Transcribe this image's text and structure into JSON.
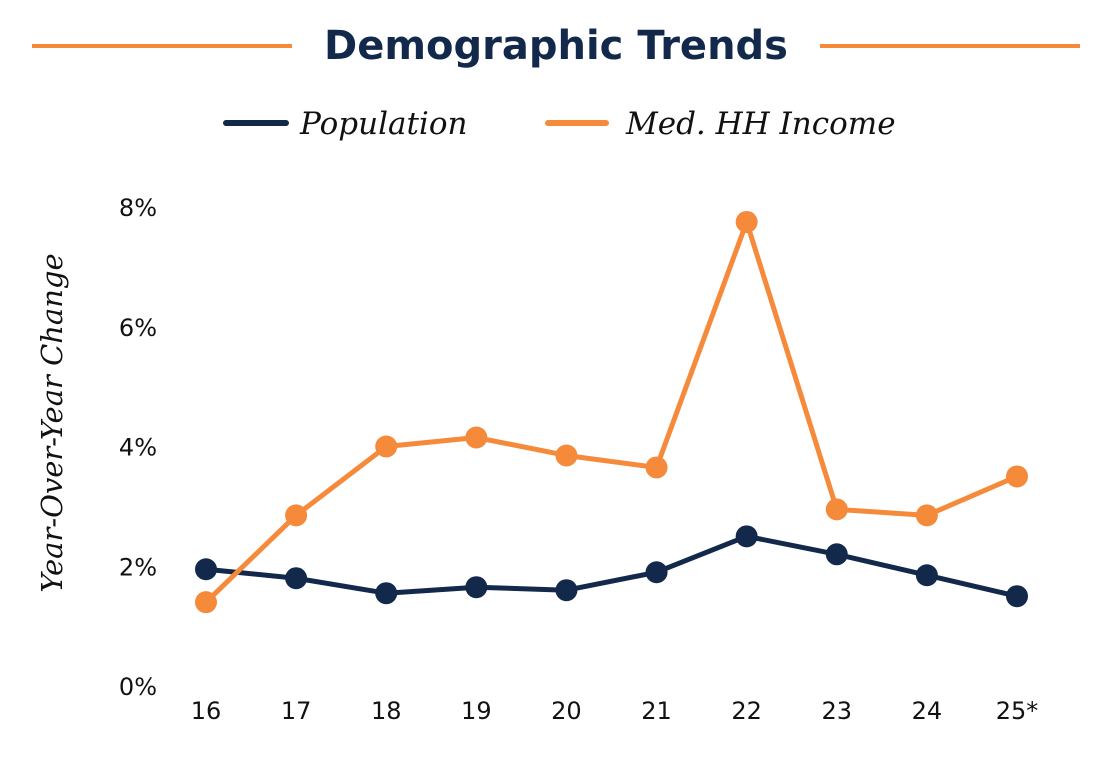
{
  "chart_data": {
    "type": "line",
    "title": "Demographic Trends",
    "xlabel": "",
    "ylabel": "Year-Over-Year Change",
    "categories": [
      "16",
      "17",
      "18",
      "19",
      "20",
      "21",
      "22",
      "23",
      "24",
      "25*"
    ],
    "ylim": [
      0,
      8
    ],
    "yticks": [
      "0%",
      "2%",
      "4%",
      "6%",
      "8%"
    ],
    "grid": false,
    "legend_position": "top-center",
    "series": [
      {
        "name": "Population",
        "color": "#13294b",
        "values": [
          1.95,
          1.8,
          1.55,
          1.65,
          1.6,
          1.9,
          2.5,
          2.2,
          1.85,
          1.5
        ]
      },
      {
        "name": "Med. HH Income",
        "color": "#f58a3b",
        "values": [
          1.4,
          2.85,
          4.0,
          4.15,
          3.85,
          3.65,
          7.75,
          2.95,
          2.85,
          3.5
        ]
      }
    ]
  }
}
